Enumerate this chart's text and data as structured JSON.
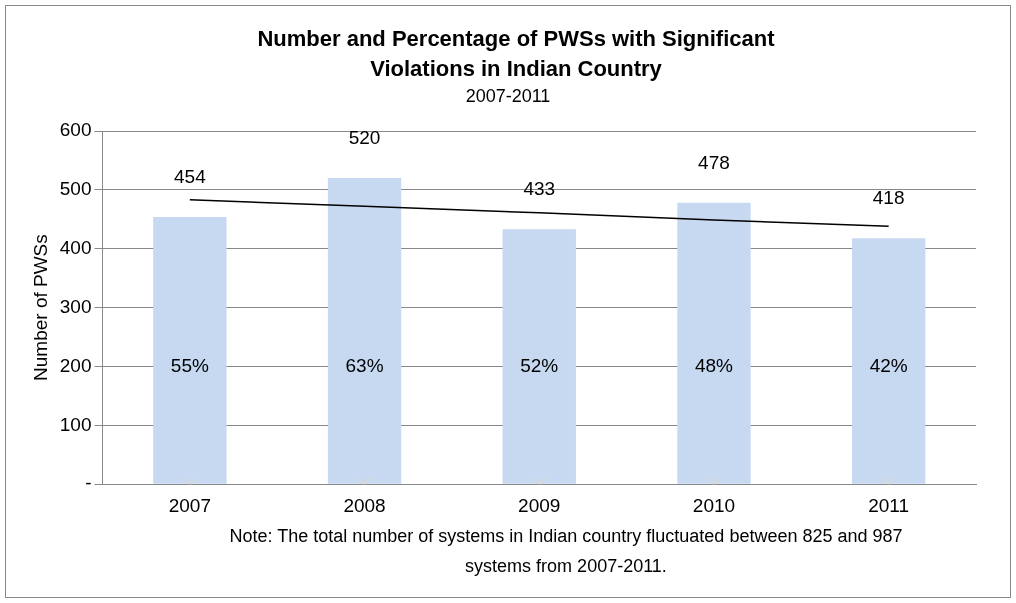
{
  "chart_data": {
    "type": "bar",
    "title": "Number and Percentage of PWSs with Significant Violations in Indian Country",
    "subtitle": "2007-2011",
    "ylabel": "Number of PWSs",
    "categories": [
      "2007",
      "2008",
      "2009",
      "2010",
      "2011"
    ],
    "series": [
      {
        "color": "#c6d9f1",
        "values": [
          454,
          520,
          433,
          478,
          418
        ],
        "value_labels": [
          "454",
          "520",
          "433",
          "478",
          "418"
        ]
      },
      {
        "type": "scatter",
        "color": "#d9d9d9",
        "marker": "cross",
        "values": [
          0,
          0,
          0,
          0,
          0
        ]
      },
      {
        "type": "line",
        "color": "#000000",
        "marker": "none",
        "values": [
          483,
          472,
          461,
          449,
          438
        ]
      }
    ],
    "ylim": [
      0,
      600
    ],
    "yticks": [
      {
        "value": 0,
        "label": "-"
      },
      100,
      200,
      300,
      400,
      500,
      600
    ],
    "grid": "y",
    "legend": false,
    "annotations": [
      "55%",
      "63%",
      "52%",
      "48%",
      "42%",
      "Note: The total number of systems in Indian country fluctuated between 825 and 987 systems from 2007-2011."
    ]
  }
}
